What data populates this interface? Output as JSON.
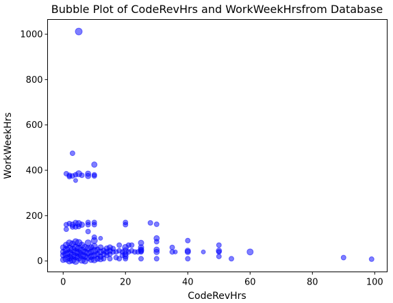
{
  "chart_data": {
    "type": "scatter",
    "title": "Bubble Plot of CodeRevHrs and WorkWeekHrsfrom Database",
    "xlabel": "CodeRevHrs",
    "ylabel": "WorkWeekHrs",
    "xlim": [
      -5,
      104
    ],
    "ylim": [
      -48,
      1065
    ],
    "xticks": [
      0,
      20,
      40,
      60,
      80,
      100
    ],
    "yticks": [
      0,
      200,
      400,
      600,
      800,
      1000
    ],
    "grid": false,
    "marker_color": "#0000ff",
    "marker_alpha": 0.5,
    "points": [
      [
        5,
        1012,
        10
      ],
      [
        3,
        475,
        7
      ],
      [
        10,
        425,
        8
      ],
      [
        1,
        385,
        7
      ],
      [
        2,
        378,
        7
      ],
      [
        3,
        375,
        7
      ],
      [
        4,
        380,
        7
      ],
      [
        5,
        385,
        9
      ],
      [
        6,
        378,
        7
      ],
      [
        8,
        385,
        8
      ],
      [
        8,
        375,
        8
      ],
      [
        10,
        380,
        7
      ],
      [
        10,
        375,
        7
      ],
      [
        2,
        372,
        7
      ],
      [
        4,
        355,
        6
      ],
      [
        1,
        160,
        7
      ],
      [
        1,
        140,
        7
      ],
      [
        2,
        165,
        7
      ],
      [
        3,
        160,
        8
      ],
      [
        4,
        168,
        8
      ],
      [
        5,
        165,
        9
      ],
      [
        6,
        160,
        8
      ],
      [
        3,
        150,
        7
      ],
      [
        4,
        150,
        7
      ],
      [
        5,
        152,
        7
      ],
      [
        8,
        170,
        7
      ],
      [
        8,
        160,
        7
      ],
      [
        8,
        130,
        7
      ],
      [
        10,
        170,
        7
      ],
      [
        10,
        160,
        7
      ],
      [
        10,
        105,
        7
      ],
      [
        12,
        100,
        6
      ],
      [
        20,
        170,
        7
      ],
      [
        20,
        160,
        7
      ],
      [
        28,
        168,
        7
      ],
      [
        30,
        162,
        7
      ],
      [
        20,
        60,
        9
      ],
      [
        22,
        70,
        7
      ],
      [
        25,
        80,
        8
      ],
      [
        25,
        50,
        8
      ],
      [
        25,
        40,
        7
      ],
      [
        25,
        10,
        7
      ],
      [
        20,
        10,
        7
      ],
      [
        30,
        100,
        8
      ],
      [
        30,
        85,
        7
      ],
      [
        30,
        50,
        8
      ],
      [
        30,
        40,
        8
      ],
      [
        30,
        10,
        7
      ],
      [
        35,
        60,
        7
      ],
      [
        35,
        40,
        7
      ],
      [
        36,
        40,
        6
      ],
      [
        40,
        90,
        7
      ],
      [
        40,
        45,
        8
      ],
      [
        40,
        40,
        8
      ],
      [
        40,
        10,
        7
      ],
      [
        45,
        40,
        6
      ],
      [
        50,
        70,
        7
      ],
      [
        50,
        45,
        8
      ],
      [
        50,
        40,
        7
      ],
      [
        50,
        20,
        7
      ],
      [
        54,
        10,
        7
      ],
      [
        60,
        40,
        9
      ],
      [
        90,
        15,
        7
      ],
      [
        99,
        8,
        7
      ],
      [
        0,
        60,
        8
      ],
      [
        0,
        40,
        8
      ],
      [
        0,
        25,
        8
      ],
      [
        0,
        5,
        8
      ],
      [
        1,
        70,
        9
      ],
      [
        1,
        50,
        10
      ],
      [
        1,
        30,
        10
      ],
      [
        1,
        10,
        10
      ],
      [
        2,
        80,
        9
      ],
      [
        2,
        55,
        10
      ],
      [
        2,
        35,
        10
      ],
      [
        2,
        15,
        10
      ],
      [
        2,
        0,
        9
      ],
      [
        3,
        75,
        9
      ],
      [
        3,
        50,
        10
      ],
      [
        3,
        25,
        10
      ],
      [
        3,
        5,
        10
      ],
      [
        4,
        85,
        9
      ],
      [
        4,
        60,
        10
      ],
      [
        4,
        40,
        10
      ],
      [
        4,
        20,
        10
      ],
      [
        4,
        0,
        10
      ],
      [
        5,
        80,
        10
      ],
      [
        5,
        55,
        10
      ],
      [
        5,
        35,
        10
      ],
      [
        5,
        15,
        10
      ],
      [
        6,
        70,
        9
      ],
      [
        6,
        45,
        10
      ],
      [
        6,
        25,
        10
      ],
      [
        6,
        5,
        10
      ],
      [
        7,
        60,
        9
      ],
      [
        7,
        40,
        9
      ],
      [
        7,
        20,
        9
      ],
      [
        7,
        0,
        9
      ],
      [
        8,
        80,
        9
      ],
      [
        8,
        55,
        9
      ],
      [
        8,
        35,
        9
      ],
      [
        8,
        15,
        9
      ],
      [
        9,
        60,
        8
      ],
      [
        9,
        40,
        9
      ],
      [
        9,
        20,
        9
      ],
      [
        9,
        5,
        8
      ],
      [
        10,
        90,
        9
      ],
      [
        10,
        65,
        9
      ],
      [
        10,
        45,
        10
      ],
      [
        10,
        25,
        9
      ],
      [
        10,
        5,
        9
      ],
      [
        11,
        50,
        8
      ],
      [
        11,
        30,
        8
      ],
      [
        11,
        10,
        8
      ],
      [
        12,
        60,
        8
      ],
      [
        12,
        40,
        9
      ],
      [
        12,
        20,
        8
      ],
      [
        12,
        8,
        8
      ],
      [
        13,
        45,
        8
      ],
      [
        13,
        30,
        8
      ],
      [
        13,
        10,
        7
      ],
      [
        14,
        55,
        8
      ],
      [
        14,
        40,
        8
      ],
      [
        14,
        25,
        7
      ],
      [
        15,
        60,
        8
      ],
      [
        15,
        45,
        8
      ],
      [
        15,
        30,
        7
      ],
      [
        15,
        10,
        7
      ],
      [
        16,
        55,
        7
      ],
      [
        16,
        40,
        7
      ],
      [
        17,
        40,
        7
      ],
      [
        17,
        15,
        7
      ],
      [
        18,
        70,
        7
      ],
      [
        18,
        45,
        7
      ],
      [
        18,
        10,
        7
      ],
      [
        19,
        40,
        7
      ],
      [
        19,
        25,
        7
      ],
      [
        20,
        45,
        9
      ],
      [
        20,
        30,
        8
      ],
      [
        20,
        20,
        8
      ],
      [
        21,
        70,
        7
      ],
      [
        21,
        40,
        7
      ],
      [
        22,
        45,
        7
      ],
      [
        23,
        40,
        7
      ],
      [
        24,
        40,
        7
      ],
      [
        25,
        60,
        8
      ],
      [
        25,
        45,
        8
      ]
    ]
  }
}
